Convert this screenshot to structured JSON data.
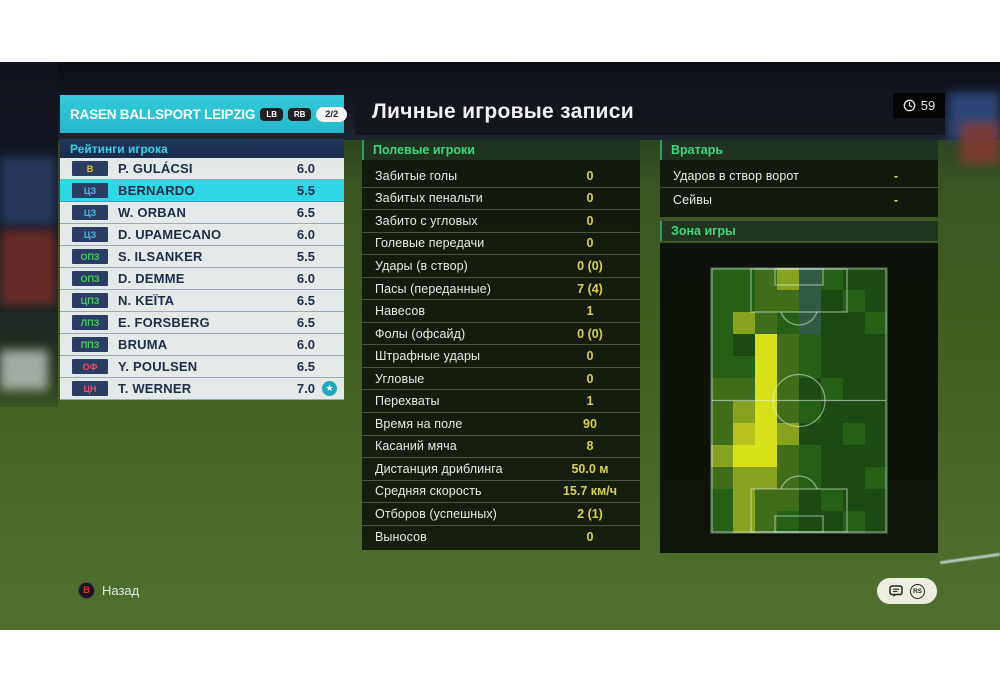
{
  "title_bar": {
    "title": "Личные игровые записи",
    "clock_value": "59"
  },
  "team_panel": {
    "team_name": "RASEN BALLSPORT LEIPZIG",
    "prev_button": "LB",
    "next_button": "RB",
    "page_indicator": "2/2",
    "list_header": "Рейтинги игрока",
    "players": [
      {
        "pos": "В",
        "pos_type": "gk",
        "name": "P. GULÁCSI",
        "rating": "6.0",
        "selected": false,
        "star": false
      },
      {
        "pos": "ЦЗ",
        "pos_type": "df",
        "name": "BERNARDO",
        "rating": "5.5",
        "selected": true,
        "star": false
      },
      {
        "pos": "ЦЗ",
        "pos_type": "df",
        "name": "W. ORBAN",
        "rating": "6.5",
        "selected": false,
        "star": false
      },
      {
        "pos": "ЦЗ",
        "pos_type": "df",
        "name": "D. UPAMECANO",
        "rating": "6.0",
        "selected": false,
        "star": false
      },
      {
        "pos": "ОПЗ",
        "pos_type": "mf",
        "name": "S. ILSANKER",
        "rating": "5.5",
        "selected": false,
        "star": false
      },
      {
        "pos": "ОПЗ",
        "pos_type": "mf",
        "name": "D. DEMME",
        "rating": "6.0",
        "selected": false,
        "star": false
      },
      {
        "pos": "ЦПЗ",
        "pos_type": "mf",
        "name": "N. KEÏTA",
        "rating": "6.5",
        "selected": false,
        "star": false
      },
      {
        "pos": "ЛПЗ",
        "pos_type": "mf",
        "name": "E. FORSBERG",
        "rating": "6.5",
        "selected": false,
        "star": false
      },
      {
        "pos": "ППЗ",
        "pos_type": "mf",
        "name": "BRUMA",
        "rating": "6.0",
        "selected": false,
        "star": false
      },
      {
        "pos": "ОФ",
        "pos_type": "fw",
        "name": "Y. POULSEN",
        "rating": "6.5",
        "selected": false,
        "star": false
      },
      {
        "pos": "ЦН",
        "pos_type": "fw",
        "name": "T. WERNER",
        "rating": "7.0",
        "selected": false,
        "star": true
      }
    ]
  },
  "field_stats": {
    "header": "Полевые игроки",
    "rows": [
      {
        "label": "Забитые голы",
        "value": "0"
      },
      {
        "label": "Забитых пенальти",
        "value": "0"
      },
      {
        "label": "Забито с угловых",
        "value": "0"
      },
      {
        "label": "Голевые передачи",
        "value": "0"
      },
      {
        "label": "Удары (в створ)",
        "value": "0 (0)"
      },
      {
        "label": "Пасы (переданные)",
        "value": "7 (4)"
      },
      {
        "label": "Навесов",
        "value": "1"
      },
      {
        "label": "Фолы (офсайд)",
        "value": "0 (0)"
      },
      {
        "label": "Штрафные удары",
        "value": "0"
      },
      {
        "label": "Угловые",
        "value": "0"
      },
      {
        "label": "Перехваты",
        "value": "1"
      },
      {
        "label": "Время на поле",
        "value": "90"
      },
      {
        "label": "Касаний мяча",
        "value": "8"
      },
      {
        "label": "Дистанция дриблинга",
        "value": "50.0 м"
      },
      {
        "label": "Средняя скорость",
        "value": "15.7 км/ч"
      },
      {
        "label": "Отборов (успешных)",
        "value": "2 (1)"
      },
      {
        "label": "Выносов",
        "value": "0"
      }
    ]
  },
  "gk_stats": {
    "header": "Вратарь",
    "rows": [
      {
        "label": "Ударов в створ ворот",
        "value": "-"
      },
      {
        "label": "Сейвы",
        "value": "-"
      }
    ]
  },
  "zone": {
    "header": "Зона игры",
    "heatmap": {
      "palette": {
        "0": "#1b4a12",
        "1": "#266016",
        "2": "#3f6d1a",
        "3": "#86a21f",
        "4": "#b8c41d",
        "5": "#d8e01a",
        "t": "#2f5b44"
      },
      "grid": [
        "1123t100",
        "1122t010",
        "1321t001",
        "10521000",
        "11521000",
        "22520100",
        "23521000",
        "24530010",
        "35521000",
        "23321001",
        "13220100",
        "13210010"
      ]
    }
  },
  "footer": {
    "back_button": "B",
    "back_label": "Назад",
    "icons": [
      "chat-icon",
      "right-stick-icon"
    ],
    "rs_label": "RS"
  },
  "colors": {
    "team_accent": "#29c3d4",
    "selected_row": "#2fd6e6",
    "pos_gk": "#e9c722",
    "pos_df": "#4db9ea",
    "pos_mf": "#43cc5e",
    "pos_fw": "#ef4a6e",
    "section_header_green": "#3ed67c",
    "stat_value_yellow": "#d9d14e"
  }
}
